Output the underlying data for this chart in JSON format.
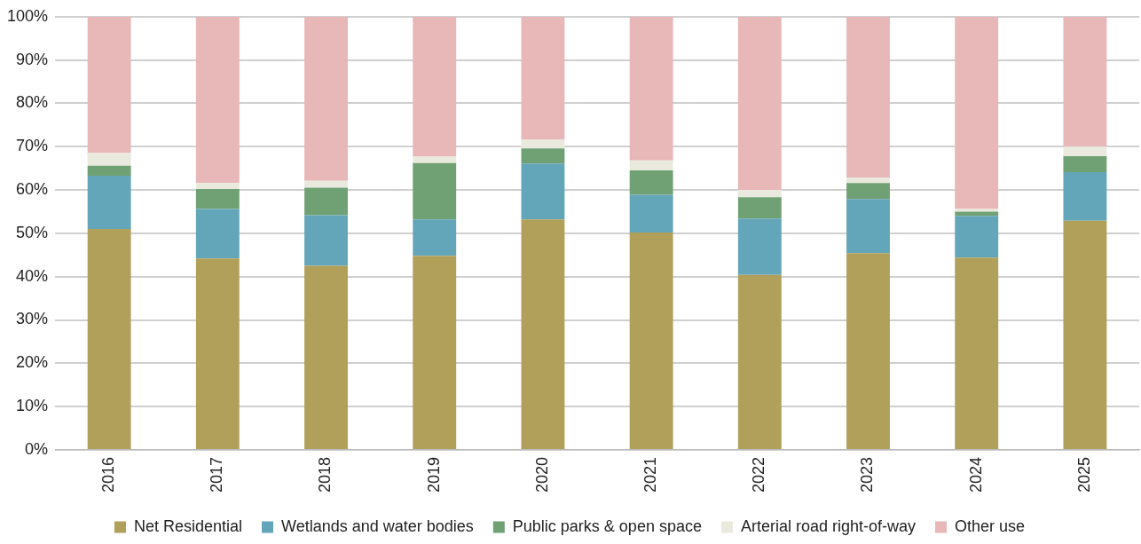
{
  "chart_data": {
    "type": "bar",
    "stacked": true,
    "categories": [
      "2016",
      "2017",
      "2018",
      "2019",
      "2020",
      "2021",
      "2022",
      "2023",
      "2024",
      "2025"
    ],
    "series": [
      {
        "name": "Net Residential",
        "color": "#b0a05a",
        "values": [
          51.0,
          44.2,
          42.5,
          44.8,
          53.2,
          50.2,
          40.4,
          45.4,
          44.4,
          52.9
        ]
      },
      {
        "name": "Wetlands and water bodies",
        "color": "#64a6b9",
        "values": [
          12.3,
          11.4,
          11.7,
          8.4,
          12.9,
          8.7,
          13.0,
          12.5,
          9.6,
          11.2
        ]
      },
      {
        "name": "Public parks & open space",
        "color": "#70a174",
        "values": [
          2.3,
          4.6,
          6.3,
          13.0,
          3.5,
          5.6,
          4.9,
          3.7,
          1.0,
          3.7
        ]
      },
      {
        "name": "Arterial road right-of-way",
        "color": "#e9eadd",
        "values": [
          2.9,
          1.4,
          1.6,
          1.5,
          2.0,
          2.3,
          1.7,
          1.3,
          0.6,
          2.2
        ]
      },
      {
        "name": "Other use",
        "color": "#e8b7b8",
        "values": [
          31.5,
          38.4,
          37.9,
          32.3,
          28.4,
          33.2,
          40.0,
          37.1,
          44.4,
          30.0
        ]
      }
    ],
    "ylim": [
      0,
      100
    ],
    "yticks": [
      {
        "value": 0,
        "label": "0%"
      },
      {
        "value": 10,
        "label": "10%"
      },
      {
        "value": 20,
        "label": "20%"
      },
      {
        "value": 30,
        "label": "30%"
      },
      {
        "value": 40,
        "label": "40%"
      },
      {
        "value": 50,
        "label": "50%"
      },
      {
        "value": 60,
        "label": "60%"
      },
      {
        "value": 70,
        "label": "70%"
      },
      {
        "value": 80,
        "label": "80%"
      },
      {
        "value": 90,
        "label": "90%"
      },
      {
        "value": 100,
        "label": "100%"
      }
    ],
    "grid": "y",
    "legend": "bottom"
  }
}
